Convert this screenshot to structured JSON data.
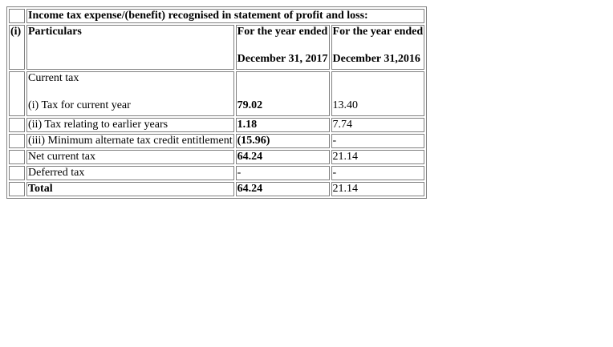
{
  "table": {
    "number_label": "(i)",
    "caption": "Income tax expense/(benefit) recognised in statement of profit and loss:",
    "header": {
      "particulars": "Particulars",
      "col1_line1": "For the year ended",
      "col1_line2": "December 31, 2017",
      "col2_line1": "For the year ended",
      "col2_line2": "December 31,2016"
    },
    "current_tax_label": "Current tax",
    "rows": [
      {
        "label": "(i) Tax for current year",
        "v2017": "79.02",
        "v2016": "13.40"
      },
      {
        "label": "(ii) Tax relating to earlier years",
        "v2017": "1.18",
        "v2016": "7.74"
      },
      {
        "label": "(iii) Minimum alternate tax credit entitlement",
        "v2017": "(15.96)",
        "v2016": "-"
      },
      {
        "label": "Net current tax",
        "v2017": "64.24",
        "v2016": "21.14"
      },
      {
        "label": "Deferred tax",
        "v2017": "-",
        "v2016": "-"
      },
      {
        "label": "Total",
        "v2017": "64.24",
        "v2016": "21.14"
      }
    ]
  }
}
